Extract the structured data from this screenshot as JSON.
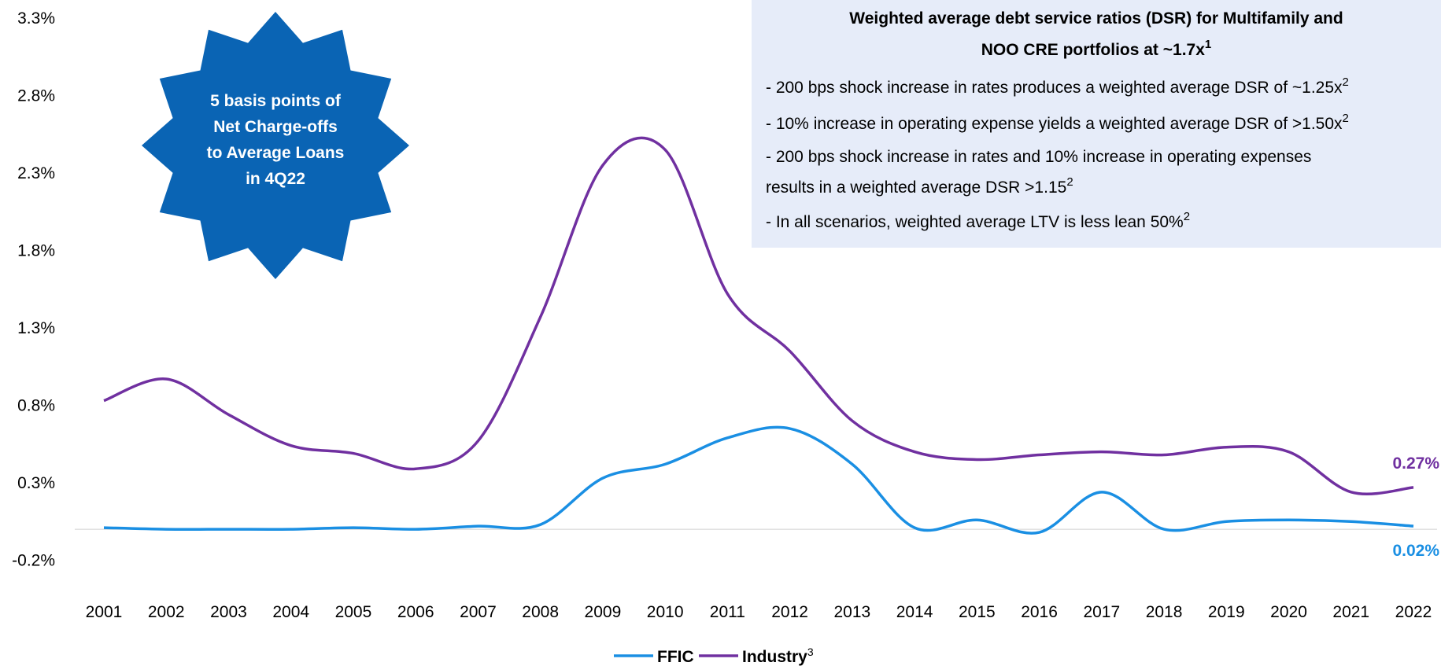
{
  "chart_data": {
    "type": "line",
    "categories": [
      "2001",
      "2002",
      "2003",
      "2004",
      "2005",
      "2006",
      "2007",
      "2008",
      "2009",
      "2010",
      "2011",
      "2012",
      "2013",
      "2014",
      "2015",
      "2016",
      "2017",
      "2018",
      "2019",
      "2020",
      "2021",
      "2022"
    ],
    "series": [
      {
        "name": "FFIC",
        "color": "#1a8fe3",
        "values": [
          0.01,
          0.0,
          0.0,
          0.0,
          0.01,
          0.0,
          0.02,
          0.03,
          0.33,
          0.42,
          0.59,
          0.65,
          0.42,
          0.01,
          0.06,
          -0.02,
          0.24,
          0.0,
          0.05,
          0.06,
          0.05,
          0.02
        ],
        "value_labels": [
          null,
          null,
          null,
          null,
          null,
          null,
          null,
          null,
          null,
          null,
          null,
          null,
          null,
          null,
          null,
          null,
          null,
          null,
          null,
          null,
          null,
          "0.02%"
        ]
      },
      {
        "name": "Industry",
        "footnote_mark": "3",
        "color": "#7030a0",
        "values": [
          0.83,
          0.97,
          0.74,
          0.54,
          0.49,
          0.39,
          0.57,
          1.37,
          2.35,
          2.45,
          1.52,
          1.15,
          0.7,
          0.5,
          0.45,
          0.48,
          0.5,
          0.48,
          0.53,
          0.5,
          0.24,
          0.27
        ],
        "value_labels": [
          null,
          null,
          null,
          null,
          null,
          null,
          null,
          null,
          null,
          null,
          null,
          null,
          null,
          null,
          null,
          null,
          null,
          null,
          null,
          null,
          null,
          "0.27%"
        ]
      }
    ],
    "ylim": [
      -0.2,
      3.3
    ],
    "yticks": [
      {
        "value": -0.2,
        "label": "-0.2%"
      },
      {
        "value": 0.3,
        "label": "0.3%"
      },
      {
        "value": 0.8,
        "label": "0.8%"
      },
      {
        "value": 1.3,
        "label": "1.3%"
      },
      {
        "value": 1.8,
        "label": "1.8%"
      },
      {
        "value": 2.3,
        "label": "2.3%"
      },
      {
        "value": 2.8,
        "label": "2.8%"
      },
      {
        "value": 3.3,
        "label": "3.3%"
      }
    ],
    "legend": "bottom",
    "callout": {
      "lines": [
        "5 basis points of",
        "Net Charge-offs",
        "to Average Loans",
        "in 4Q22"
      ],
      "color": "#0a64b4"
    },
    "info_box": {
      "title": [
        {
          "text": "Weighted average debt service ratios (DSR) for Multifamily and"
        },
        {
          "text": "NOO CRE portfolios at ~1.7x",
          "sup": "1"
        }
      ],
      "lines": [
        {
          "text": "- 200 bps shock increase in rates produces a weighted average DSR of ~1.25x",
          "sup": "2"
        },
        {
          "text": "- 10% increase in operating expense yields a weighted average DSR of >1.50x",
          "sup": "2"
        },
        {
          "text": "- 200 bps shock increase in rates and 10% increase in operating expenses"
        },
        {
          "text": "  results in a weighted average DSR >1.15",
          "sup": "2"
        },
        {
          "text": "- In all scenarios, weighted average LTV is less lean 50%",
          "sup": "2"
        }
      ]
    }
  }
}
